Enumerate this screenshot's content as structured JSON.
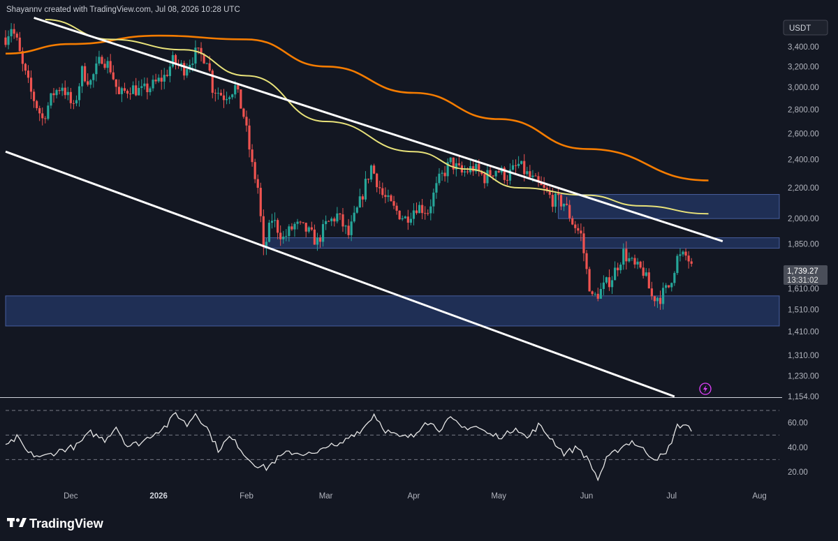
{
  "header": {
    "attribution": "Shayannv created with TradingView.com, Jul 08, 2026 10:28 UTC"
  },
  "currency_badge": "USDT",
  "price_label": {
    "value": "1,739.27",
    "countdown": "13:31:02"
  },
  "branding": {
    "logo_text": "TradingView"
  },
  "colors": {
    "background": "#131722",
    "bull": "#26a69a",
    "bear": "#ef5350",
    "ma_orange": "#f57c00",
    "ma_yellow": "#e8e27a",
    "trendline": "#ffffff",
    "zone": "#2a4380",
    "rsi": "#e6e6e6",
    "alert_icon": "#e040fb"
  },
  "chart_data": [
    {
      "type": "candlestick",
      "symbol_quote": "USDT",
      "y_scale": "log",
      "ylim": [
        1154,
        3700
      ],
      "y_ticks": [
        {
          "value": 3400,
          "label": "3,400.00"
        },
        {
          "value": 3200,
          "label": "3,200.00"
        },
        {
          "value": 3000,
          "label": "3,000.00"
        },
        {
          "value": 2800,
          "label": "2,800.00"
        },
        {
          "value": 2600,
          "label": "2,600.00"
        },
        {
          "value": 2400,
          "label": "2,400.00"
        },
        {
          "value": 2200,
          "label": "2,200.00"
        },
        {
          "value": 2000,
          "label": "2,000.00"
        },
        {
          "value": 1850,
          "label": "1,850.00"
        },
        {
          "value": 1610,
          "label": "1,610.00"
        },
        {
          "value": 1510,
          "label": "1,510.00"
        },
        {
          "value": 1410,
          "label": "1,410.00"
        },
        {
          "value": 1310,
          "label": "1,310.00"
        },
        {
          "value": 1230,
          "label": "1,230.00"
        },
        {
          "value": 1154,
          "label": "1,154.00"
        }
      ],
      "x_ticks": [
        {
          "date": "2025-12-01",
          "label": "Dec",
          "bold": false
        },
        {
          "date": "2026-01-01",
          "label": "2026",
          "bold": true
        },
        {
          "date": "2026-02-01",
          "label": "Feb",
          "bold": false
        },
        {
          "date": "2026-03-01",
          "label": "Mar",
          "bold": false
        },
        {
          "date": "2026-04-01",
          "label": "Apr",
          "bold": false
        },
        {
          "date": "2026-05-01",
          "label": "May",
          "bold": false
        },
        {
          "date": "2026-06-01",
          "label": "Jun",
          "bold": false
        },
        {
          "date": "2026-07-01",
          "label": "Jul",
          "bold": false
        },
        {
          "date": "2026-08-01",
          "label": "Aug",
          "bold": false
        }
      ],
      "x_range": [
        "2025-11-08",
        "2026-08-08"
      ],
      "last_price": 1739.27,
      "closes_anchor": [
        [
          "2025-11-08",
          3500
        ],
        [
          "2025-11-10",
          3620
        ],
        [
          "2025-11-12",
          3450
        ],
        [
          "2025-11-14",
          3200
        ],
        [
          "2025-11-17",
          2950
        ],
        [
          "2025-11-21",
          2720
        ],
        [
          "2025-11-25",
          2950
        ],
        [
          "2025-11-28",
          3020
        ],
        [
          "2025-12-02",
          2800
        ],
        [
          "2025-12-05",
          3150
        ],
        [
          "2025-12-08",
          3050
        ],
        [
          "2025-12-12",
          3300
        ],
        [
          "2025-12-15",
          3180
        ],
        [
          "2025-12-18",
          2920
        ],
        [
          "2025-12-22",
          3000
        ],
        [
          "2025-12-26",
          2960
        ],
        [
          "2025-12-30",
          3020
        ],
        [
          "2026-01-03",
          3100
        ],
        [
          "2026-01-06",
          3250
        ],
        [
          "2026-01-10",
          3180
        ],
        [
          "2026-01-14",
          3330
        ],
        [
          "2026-01-18",
          3290
        ],
        [
          "2026-01-20",
          3000
        ],
        [
          "2026-01-24",
          2920
        ],
        [
          "2026-01-28",
          3000
        ],
        [
          "2026-01-31",
          2750
        ],
        [
          "2026-02-03",
          2350
        ],
        [
          "2026-02-05",
          2200
        ],
        [
          "2026-02-07",
          1800
        ],
        [
          "2026-02-10",
          2000
        ],
        [
          "2026-02-14",
          1880
        ],
        [
          "2026-02-18",
          1960
        ],
        [
          "2026-02-22",
          1930
        ],
        [
          "2026-02-26",
          1860
        ],
        [
          "2026-03-01",
          1960
        ],
        [
          "2026-03-05",
          2020
        ],
        [
          "2026-03-09",
          1900
        ],
        [
          "2026-03-13",
          2100
        ],
        [
          "2026-03-17",
          2350
        ],
        [
          "2026-03-21",
          2150
        ],
        [
          "2026-03-25",
          2060
        ],
        [
          "2026-03-29",
          2000
        ],
        [
          "2026-04-02",
          2080
        ],
        [
          "2026-04-06",
          2050
        ],
        [
          "2026-04-10",
          2250
        ],
        [
          "2026-04-14",
          2380
        ],
        [
          "2026-04-18",
          2300
        ],
        [
          "2026-04-22",
          2340
        ],
        [
          "2026-04-26",
          2270
        ],
        [
          "2026-04-30",
          2330
        ],
        [
          "2026-05-04",
          2280
        ],
        [
          "2026-05-08",
          2360
        ],
        [
          "2026-05-12",
          2270
        ],
        [
          "2026-05-16",
          2200
        ],
        [
          "2026-05-20",
          2120
        ],
        [
          "2026-05-24",
          2100
        ],
        [
          "2026-05-27",
          1980
        ],
        [
          "2026-05-30",
          1900
        ],
        [
          "2026-06-01",
          1700
        ],
        [
          "2026-06-03",
          1560
        ],
        [
          "2026-06-06",
          1600
        ],
        [
          "2026-06-10",
          1670
        ],
        [
          "2026-06-14",
          1800
        ],
        [
          "2026-06-18",
          1720
        ],
        [
          "2026-06-21",
          1700
        ],
        [
          "2026-06-24",
          1570
        ],
        [
          "2026-06-27",
          1570
        ],
        [
          "2026-06-30",
          1620
        ],
        [
          "2026-07-03",
          1770
        ],
        [
          "2026-07-06",
          1780
        ],
        [
          "2026-07-08",
          1739
        ]
      ],
      "overlays": {
        "ma_orange": [
          [
            "2025-11-08",
            3330
          ],
          [
            "2025-12-01",
            3430
          ],
          [
            "2026-01-01",
            3520
          ],
          [
            "2026-02-01",
            3480
          ],
          [
            "2026-03-01",
            3200
          ],
          [
            "2026-04-01",
            2950
          ],
          [
            "2026-05-01",
            2720
          ],
          [
            "2026-06-01",
            2480
          ],
          [
            "2026-07-14",
            2250
          ]
        ],
        "ma_yellow": [
          [
            "2025-11-22",
            3700
          ],
          [
            "2025-12-15",
            3480
          ],
          [
            "2026-01-10",
            3370
          ],
          [
            "2026-02-01",
            3110
          ],
          [
            "2026-03-01",
            2700
          ],
          [
            "2026-04-01",
            2460
          ],
          [
            "2026-04-20",
            2330
          ],
          [
            "2026-05-08",
            2200
          ],
          [
            "2026-06-01",
            2150
          ],
          [
            "2026-06-20",
            2080
          ],
          [
            "2026-07-14",
            2030
          ]
        ],
        "upper_trendline": [
          [
            "2025-11-18",
            3720
          ],
          [
            "2026-07-19",
            1865
          ]
        ],
        "lower_trendline": [
          [
            "2025-11-08",
            2460
          ],
          [
            "2026-07-02",
            1154
          ]
        ],
        "zones": [
          {
            "from": "2026-05-22",
            "to": "2026-08-08",
            "low": 2000,
            "high": 2155
          },
          {
            "from": "2026-02-07",
            "to": "2026-08-08",
            "low": 1825,
            "high": 1885
          },
          {
            "from": "2025-11-08",
            "to": "2026-08-08",
            "low": 1435,
            "high": 1575
          }
        ]
      }
    },
    {
      "type": "line",
      "indicator": "oscillator",
      "ylim": [
        8,
        78
      ],
      "y_ticks": [
        {
          "value": 60,
          "label": "60.00"
        },
        {
          "value": 40,
          "label": "40.00"
        },
        {
          "value": 20,
          "label": "20.00"
        }
      ],
      "bands": [
        70,
        50,
        30
      ],
      "values_anchor": [
        [
          "2025-11-08",
          40
        ],
        [
          "2025-11-12",
          48
        ],
        [
          "2025-11-16",
          35
        ],
        [
          "2025-11-21",
          32
        ],
        [
          "2025-11-28",
          38
        ],
        [
          "2025-12-03",
          41
        ],
        [
          "2025-12-08",
          52
        ],
        [
          "2025-12-13",
          46
        ],
        [
          "2025-12-17",
          57
        ],
        [
          "2025-12-21",
          41
        ],
        [
          "2025-12-26",
          44
        ],
        [
          "2025-12-30",
          51
        ],
        [
          "2026-01-04",
          58
        ],
        [
          "2026-01-07",
          68
        ],
        [
          "2026-01-11",
          58
        ],
        [
          "2026-01-14",
          68
        ],
        [
          "2026-01-18",
          56
        ],
        [
          "2026-01-22",
          38
        ],
        [
          "2026-01-26",
          48
        ],
        [
          "2026-01-29",
          42
        ],
        [
          "2026-02-01",
          32
        ],
        [
          "2026-02-05",
          25
        ],
        [
          "2026-02-08",
          23
        ],
        [
          "2026-02-12",
          31
        ],
        [
          "2026-02-16",
          36
        ],
        [
          "2026-02-21",
          35
        ],
        [
          "2026-02-26",
          34
        ],
        [
          "2026-03-01",
          42
        ],
        [
          "2026-03-05",
          40
        ],
        [
          "2026-03-10",
          50
        ],
        [
          "2026-03-14",
          55
        ],
        [
          "2026-03-18",
          67
        ],
        [
          "2026-03-22",
          54
        ],
        [
          "2026-03-27",
          48
        ],
        [
          "2026-04-01",
          49
        ],
        [
          "2026-04-05",
          62
        ],
        [
          "2026-04-10",
          55
        ],
        [
          "2026-04-14",
          63
        ],
        [
          "2026-04-18",
          56
        ],
        [
          "2026-04-23",
          57
        ],
        [
          "2026-04-28",
          50
        ],
        [
          "2026-05-03",
          49
        ],
        [
          "2026-05-07",
          57
        ],
        [
          "2026-05-11",
          47
        ],
        [
          "2026-05-15",
          58
        ],
        [
          "2026-05-20",
          46
        ],
        [
          "2026-05-24",
          35
        ],
        [
          "2026-05-29",
          40
        ],
        [
          "2026-06-02",
          28
        ],
        [
          "2026-06-05",
          14
        ],
        [
          "2026-06-08",
          30
        ],
        [
          "2026-06-13",
          40
        ],
        [
          "2026-06-17",
          45
        ],
        [
          "2026-06-21",
          38
        ],
        [
          "2026-06-25",
          31
        ],
        [
          "2026-06-29",
          34
        ],
        [
          "2026-07-03",
          57
        ],
        [
          "2026-07-06",
          59
        ],
        [
          "2026-07-08",
          53
        ]
      ]
    }
  ]
}
